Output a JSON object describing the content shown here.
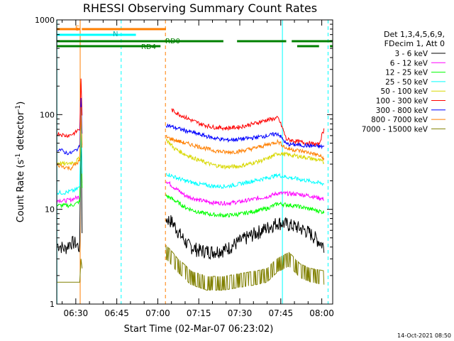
{
  "chart_data": {
    "type": "line",
    "title": "RHESSI Observing Summary Count Rates",
    "xlabel": "Start Time (02-Mar-07 06:23:02)",
    "ylabel_main": "Count Rate (s",
    "ylabel_exp": "-1",
    "ylabel_rest": " detector",
    "ylabel_end": ")",
    "footer": "14-Oct-2021 08:50",
    "x_range_min": [
      23.03,
      124.0
    ],
    "y_range": [
      1,
      1000
    ],
    "y_scale": "log",
    "x_ticks": [
      {
        "label": "06:30",
        "min": 30
      },
      {
        "label": "06:45",
        "min": 45
      },
      {
        "label": "07:00",
        "min": 60
      },
      {
        "label": "07:15",
        "min": 75
      },
      {
        "label": "07:30",
        "min": 90
      },
      {
        "label": "07:45",
        "min": 105
      },
      {
        "label": "08:00",
        "min": 120
      }
    ],
    "y_ticks": [
      {
        "label": "1",
        "v": 1
      },
      {
        "label": "10",
        "v": 10
      },
      {
        "label": "100",
        "v": 100
      },
      {
        "label": "1000",
        "v": 1000
      }
    ],
    "legend_header": [
      "Det 1,3,4,5,6,9,",
      "FDecim 1, Att 0"
    ],
    "series": [
      {
        "name": "3 - 6 keV",
        "color": "#000000",
        "pre": [
          [
            24,
            4.2
          ],
          [
            26,
            3.8
          ],
          [
            28,
            4.5
          ],
          [
            30,
            4.4
          ],
          [
            31,
            4.0
          ]
        ],
        "spike_peak": 85,
        "post": [
          [
            63,
            8
          ],
          [
            65,
            7.5
          ],
          [
            68,
            5.5
          ],
          [
            71,
            4.2
          ],
          [
            75,
            3.7
          ],
          [
            80,
            3.6
          ],
          [
            85,
            3.8
          ],
          [
            90,
            4.6
          ],
          [
            94,
            5.3
          ],
          [
            98,
            6.0
          ],
          [
            101,
            6.6
          ],
          [
            104,
            7.3
          ],
          [
            107,
            7.0
          ],
          [
            111,
            6.5
          ],
          [
            115,
            5.8
          ],
          [
            119,
            4.6
          ],
          [
            121,
            4.0
          ]
        ]
      },
      {
        "name": "6 - 12 keV",
        "color": "#ff00ff",
        "pre": [
          [
            24,
            12.5
          ],
          [
            26,
            12.3
          ],
          [
            28,
            12.6
          ],
          [
            30,
            13.2
          ],
          [
            31,
            13.5
          ]
        ],
        "spike_peak": 95,
        "post": [
          [
            63,
            20
          ],
          [
            66,
            17
          ],
          [
            70,
            14
          ],
          [
            75,
            12.5
          ],
          [
            80,
            11.8
          ],
          [
            85,
            11.6
          ],
          [
            90,
            12.0
          ],
          [
            95,
            12.8
          ],
          [
            100,
            13.6
          ],
          [
            104,
            14.8
          ],
          [
            107,
            14.7
          ],
          [
            111,
            14.5
          ],
          [
            115,
            14.0
          ],
          [
            119,
            13.2
          ],
          [
            121,
            12.8
          ]
        ]
      },
      {
        "name": "12 - 25 keV",
        "color": "#00ff00",
        "pre": [
          [
            24,
            11
          ],
          [
            26,
            11
          ],
          [
            28,
            11
          ],
          [
            30,
            11.4
          ],
          [
            31,
            12
          ]
        ],
        "spike_peak": 95,
        "post": [
          [
            63,
            14
          ],
          [
            66,
            12.5
          ],
          [
            70,
            10.5
          ],
          [
            75,
            9.3
          ],
          [
            80,
            8.8
          ],
          [
            85,
            8.6
          ],
          [
            90,
            8.9
          ],
          [
            95,
            9.5
          ],
          [
            100,
            10.2
          ],
          [
            104,
            11.5
          ],
          [
            107,
            11.2
          ],
          [
            111,
            10.8
          ],
          [
            115,
            10.2
          ],
          [
            119,
            9.6
          ],
          [
            121,
            9.3
          ]
        ]
      },
      {
        "name": "25 - 50 keV",
        "color": "#00ffff",
        "pre": [
          [
            24,
            15
          ],
          [
            26,
            15
          ],
          [
            28,
            15.5
          ],
          [
            30,
            16
          ],
          [
            31,
            17
          ]
        ],
        "spike_peak": 100,
        "post": [
          [
            63,
            24
          ],
          [
            66,
            22
          ],
          [
            70,
            20
          ],
          [
            75,
            18.5
          ],
          [
            80,
            17.6
          ],
          [
            85,
            17.5
          ],
          [
            90,
            18.5
          ],
          [
            95,
            20
          ],
          [
            100,
            21.5
          ],
          [
            104,
            23
          ],
          [
            107,
            22
          ],
          [
            111,
            21
          ],
          [
            115,
            20
          ],
          [
            119,
            19
          ],
          [
            121,
            18.6
          ]
        ]
      },
      {
        "name": "50 - 100 keV",
        "color": "#d8d800",
        "pre": [
          [
            24,
            31
          ],
          [
            26,
            30
          ],
          [
            28,
            31
          ],
          [
            30,
            32
          ],
          [
            31,
            34
          ]
        ],
        "spike_peak": 110,
        "post": [
          [
            63,
            55
          ],
          [
            66,
            44
          ],
          [
            70,
            38
          ],
          [
            75,
            33
          ],
          [
            80,
            29.5
          ],
          [
            85,
            28
          ],
          [
            90,
            28.5
          ],
          [
            95,
            31
          ],
          [
            100,
            34
          ],
          [
            104,
            39
          ],
          [
            107,
            38
          ],
          [
            111,
            36.5
          ],
          [
            115,
            35
          ],
          [
            119,
            33
          ],
          [
            121,
            31
          ]
        ]
      },
      {
        "name": "100 - 300 keV",
        "color": "#ff0000",
        "pre": [
          [
            24,
            63
          ],
          [
            26,
            60
          ],
          [
            28,
            61
          ],
          [
            30,
            65
          ],
          [
            31,
            70
          ]
        ],
        "spike_peak": 240,
        "post": [
          [
            65,
            112
          ],
          [
            68,
            100
          ],
          [
            72,
            88
          ],
          [
            76,
            79
          ],
          [
            80,
            74
          ],
          [
            85,
            72
          ],
          [
            90,
            74
          ],
          [
            95,
            80
          ],
          [
            100,
            88
          ],
          [
            104,
            92
          ],
          [
            107,
            55
          ],
          [
            111,
            52
          ],
          [
            115,
            50
          ],
          [
            119,
            48
          ],
          [
            121,
            72
          ]
        ]
      },
      {
        "name": "300 - 800 keV",
        "color": "#0000ff",
        "pre": [
          [
            24,
            43
          ],
          [
            26,
            40
          ],
          [
            28,
            39
          ],
          [
            30,
            42
          ],
          [
            31,
            45
          ]
        ],
        "spike_peak": 150,
        "post": [
          [
            63,
            78
          ],
          [
            66,
            73
          ],
          [
            70,
            68
          ],
          [
            75,
            62
          ],
          [
            80,
            57
          ],
          [
            85,
            54
          ],
          [
            90,
            55
          ],
          [
            95,
            57
          ],
          [
            100,
            60
          ],
          [
            104,
            63
          ],
          [
            107,
            49
          ],
          [
            111,
            48
          ],
          [
            115,
            47
          ],
          [
            119,
            46
          ],
          [
            121,
            46
          ]
        ]
      },
      {
        "name": "800 - 7000 keV",
        "color": "#ff7f00",
        "pre": [
          [
            24,
            29
          ],
          [
            26,
            28
          ],
          [
            28,
            27
          ],
          [
            30,
            30
          ],
          [
            31,
            32
          ]
        ],
        "spike_peak": 120,
        "post": [
          [
            63,
            58
          ],
          [
            66,
            54
          ],
          [
            70,
            50
          ],
          [
            75,
            46
          ],
          [
            80,
            42
          ],
          [
            85,
            40
          ],
          [
            90,
            41
          ],
          [
            95,
            44
          ],
          [
            100,
            48
          ],
          [
            104,
            52
          ],
          [
            107,
            44
          ],
          [
            111,
            42
          ],
          [
            115,
            40
          ],
          [
            119,
            37
          ],
          [
            121,
            34
          ]
        ]
      },
      {
        "name": "7000 - 15000 keV",
        "color": "#808000",
        "pre": [
          [
            24,
            1.7
          ],
          [
            26,
            1.7
          ],
          [
            28,
            1.7
          ],
          [
            30,
            1.7
          ],
          [
            31,
            1.7
          ]
        ],
        "spike_peak": 3,
        "post": [
          [
            63,
            3
          ],
          [
            67,
            2.2
          ],
          [
            72,
            1.6
          ],
          [
            78,
            1.4
          ],
          [
            84,
            1.4
          ],
          [
            90,
            1.5
          ],
          [
            96,
            1.6
          ],
          [
            100,
            1.7
          ],
          [
            104,
            2.2
          ],
          [
            108,
            2.5
          ],
          [
            112,
            1.9
          ],
          [
            116,
            1.7
          ],
          [
            121,
            1.6
          ]
        ]
      }
    ],
    "flags": [
      {
        "label": "S",
        "color": "#ff7f00",
        "y": 13,
        "segments": [
          [
            23.1,
            31.6
          ],
          [
            32.2,
            63
          ]
        ]
      },
      {
        "label": "N",
        "color": "#00ffff",
        "y": 21,
        "segments": [
          [
            23.1,
            46.6
          ],
          [
            46.6,
            52
          ]
        ]
      },
      {
        "label": "RD0",
        "color": "#008000",
        "y": 30,
        "segments": [
          [
            23.1,
            84
          ],
          [
            89,
            107
          ],
          [
            109,
            124
          ]
        ]
      },
      {
        "label": "RD4",
        "color": "#008000",
        "y": 37,
        "segments": [
          [
            23.1,
            61
          ],
          [
            111,
            119
          ],
          [
            123,
            124
          ]
        ]
      }
    ],
    "flag_cyan_segments": [
      [
        23.1,
        46.6
      ],
      [
        105.6,
        124
      ]
    ],
    "flag_cyan_vtick": [
      46.6,
      105.6,
      124
    ],
    "flag_orange_segments": [
      [
        23.1,
        31.5
      ],
      [
        32.2,
        62.8
      ]
    ],
    "flag_orange_vtick": [
      32.2
    ],
    "flag_green_rd0_segments": [
      [
        23.1,
        84.5
      ],
      [
        88.6,
        108.5
      ],
      [
        110.5,
        124
      ]
    ],
    "flag_green_rd4_segments": [
      [
        23.1,
        61.5
      ],
      [
        110.5,
        119.5
      ],
      [
        122.5,
        124
      ]
    ],
    "verticals": [
      {
        "min": 23.1,
        "color": "#00ffff",
        "style": "solid"
      },
      {
        "min": 31.6,
        "color": "#ff7f00",
        "style": "solid"
      },
      {
        "min": 46.6,
        "color": "#00ffff",
        "style": "dashed"
      },
      {
        "min": 62.8,
        "color": "#ff7f00",
        "style": "dashed"
      },
      {
        "min": 105.6,
        "color": "#00ffff",
        "style": "solid"
      },
      {
        "min": 122.3,
        "color": "#00ffff",
        "style": "dashed"
      }
    ]
  }
}
